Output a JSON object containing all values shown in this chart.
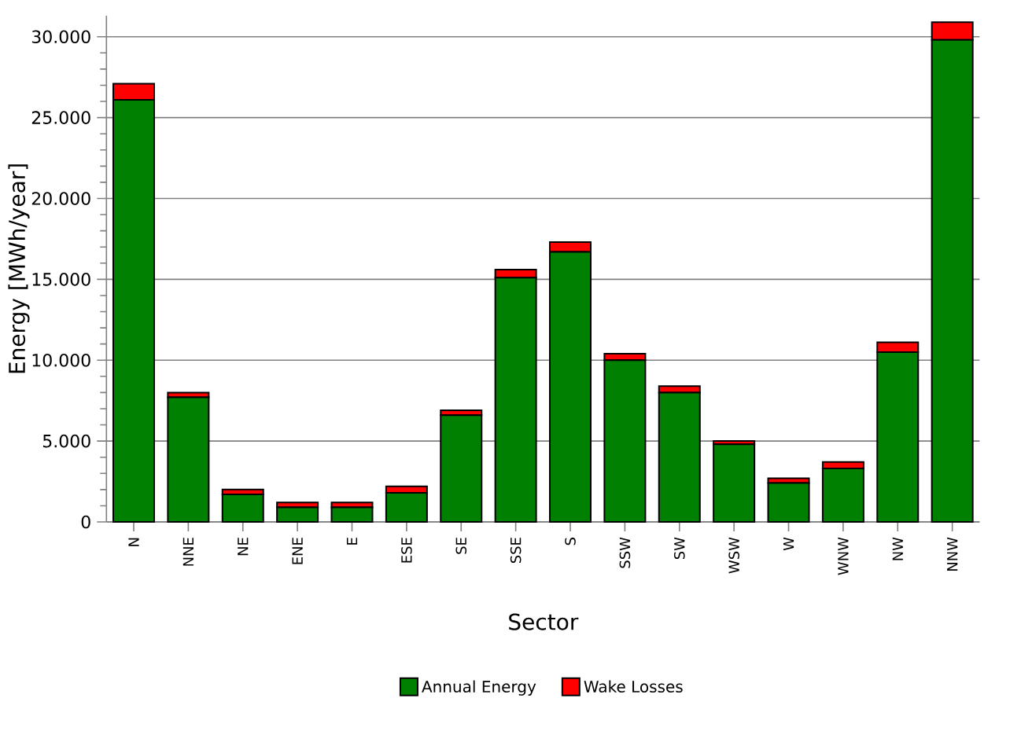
{
  "chart_data": {
    "type": "bar",
    "stacked": true,
    "xlabel": "Sector",
    "ylabel": "Energy [MWh/year]",
    "categories": [
      "N",
      "NNE",
      "NE",
      "ENE",
      "E",
      "ESE",
      "SE",
      "SSE",
      "S",
      "SSW",
      "SW",
      "WSW",
      "W",
      "WNW",
      "NW",
      "NNW"
    ],
    "series": [
      {
        "name": "Annual Energy",
        "color": "#008000",
        "values": [
          26100,
          7700,
          1700,
          900,
          900,
          1800,
          6600,
          15100,
          16700,
          10000,
          8000,
          4800,
          2400,
          3300,
          10500,
          29800
        ]
      },
      {
        "name": "Wake Losses",
        "color": "#ff0000",
        "values": [
          1000,
          300,
          300,
          300,
          300,
          400,
          300,
          500,
          600,
          400,
          400,
          200,
          300,
          400,
          600,
          1100
        ]
      }
    ],
    "ylim": [
      0,
      31300
    ],
    "yticks": [
      {
        "value": 0,
        "label": "0"
      },
      {
        "value": 5000,
        "label": "5.000"
      },
      {
        "value": 10000,
        "label": "10.000"
      },
      {
        "value": 15000,
        "label": "15.000"
      },
      {
        "value": 20000,
        "label": "20.000"
      },
      {
        "value": 25000,
        "label": "25.000"
      },
      {
        "value": 30000,
        "label": "30.000"
      }
    ],
    "grid": "y",
    "legend": "bottom"
  }
}
